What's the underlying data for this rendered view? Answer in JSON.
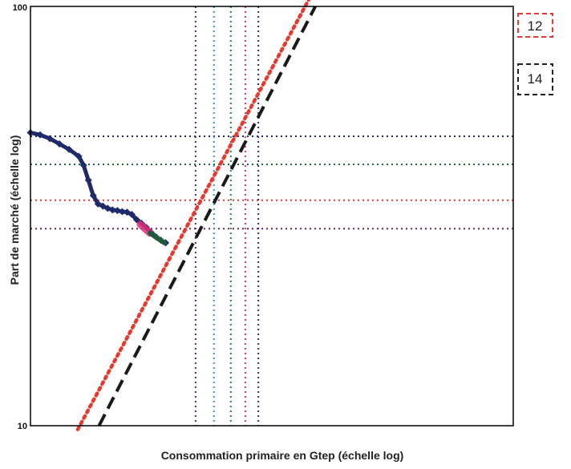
{
  "chart_data": {
    "type": "line",
    "xlabel": "Consommation primaire en Gtep (échelle log)",
    "ylabel": "Part de marché (échelle log)",
    "y_scale": "log",
    "x_scale": "log",
    "ylim": [
      10,
      100
    ],
    "y_ticks": [
      "100",
      "10"
    ],
    "grid": false,
    "curve_color": "#1f2a6b",
    "curve_points": [
      [
        0.0,
        50.0
      ],
      [
        0.02,
        49.4
      ],
      [
        0.04,
        48.4
      ],
      [
        0.06,
        47.0
      ],
      [
        0.08,
        45.6
      ],
      [
        0.1,
        43.9
      ],
      [
        0.11,
        41.8
      ],
      [
        0.12,
        38.5
      ],
      [
        0.13,
        35.4
      ],
      [
        0.14,
        33.8
      ],
      [
        0.15,
        33.4
      ],
      [
        0.16,
        33.0
      ],
      [
        0.17,
        32.7
      ],
      [
        0.18,
        32.6
      ],
      [
        0.19,
        32.4
      ],
      [
        0.2,
        32.3
      ],
      [
        0.21,
        31.9
      ],
      [
        0.22,
        31.0
      ],
      [
        0.23,
        30.4
      ],
      [
        0.24,
        29.7
      ],
      [
        0.25,
        28.9
      ],
      [
        0.26,
        28.2
      ],
      [
        0.27,
        27.7
      ],
      [
        0.28,
        27.3
      ]
    ],
    "highlight_color": "#e0307a",
    "highlight_points": [
      [
        0.2275,
        30.2
      ],
      [
        0.2475,
        28.8
      ]
    ],
    "end_segment_color": "#1d5c3a",
    "end_segment_points": [
      [
        0.2475,
        28.8
      ],
      [
        0.2775,
        27.3
      ]
    ],
    "horizontal_lines": [
      {
        "y": 49.0,
        "color": "#1f2a6b"
      },
      {
        "y": 42.0,
        "color": "#1d6b3a"
      },
      {
        "y": 34.5,
        "color": "#e8392f"
      },
      {
        "y": 29.5,
        "color": "#6b2450"
      }
    ],
    "vertical_lines": [
      {
        "x": 0.342,
        "color": "#5b2a5b"
      },
      {
        "x": 0.38,
        "color": "#3a8fd6"
      },
      {
        "x": 0.415,
        "color": "#1f8a3a"
      },
      {
        "x": 0.445,
        "color": "#e0307a"
      },
      {
        "x": 0.472,
        "color": "#2a2f7a"
      }
    ],
    "series": [
      {
        "name": "12",
        "color": "#e8392f",
        "style": "dotted",
        "points": [
          [
            0.098,
            9.8
          ],
          [
            0.59,
            111.0
          ]
        ]
      },
      {
        "name": "14",
        "color": "#1a1a1a",
        "style": "dashed",
        "points": [
          [
            0.142,
            10.0
          ],
          [
            0.59,
            100.0
          ]
        ]
      }
    ]
  }
}
